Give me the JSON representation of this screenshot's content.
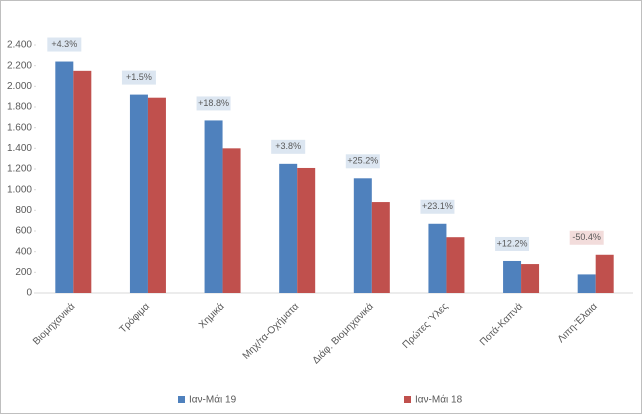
{
  "chart_data": {
    "type": "bar",
    "categories": [
      "Βιομηχανικά",
      "Τρόφιμα",
      "Χημικά",
      "Μηχ/τα-Οχήματα",
      "Διάφ. Βιομηχανικά",
      "Πρώτες Ύλες",
      "Ποτά-Καπνά",
      "Λιπη-Έλαια"
    ],
    "series": [
      {
        "name": "Ιαν-Μάι 19",
        "color": "#4f81bd",
        "values": [
          2240,
          1920,
          1670,
          1250,
          1110,
          670,
          310,
          180
        ]
      },
      {
        "name": "Ιαν-Μάι 18",
        "color": "#c0504d",
        "values": [
          2150,
          1890,
          1400,
          1210,
          880,
          540,
          280,
          370
        ]
      }
    ],
    "annotations": [
      "+4.3%",
      "+1.5%",
      "+18.8%",
      "+3.8%",
      "+25.2%",
      "+23.1%",
      "+12.2%",
      "-50.4%"
    ],
    "ylim": [
      0,
      2400
    ],
    "yticks": [
      0,
      200,
      400,
      600,
      800,
      {
        "value": 1000,
        "label": "1.000"
      },
      {
        "value": 1200,
        "label": "1.200"
      },
      {
        "value": 1400,
        "label": "1.400"
      },
      {
        "value": 1600,
        "label": "1.600"
      },
      {
        "value": 1800,
        "label": "1.800"
      },
      {
        "value": 2000,
        "label": "2.000"
      },
      {
        "value": 2200,
        "label": "2.200"
      },
      {
        "value": 2400,
        "label": "2.400"
      }
    ],
    "grid": false,
    "legend": "bottom"
  }
}
